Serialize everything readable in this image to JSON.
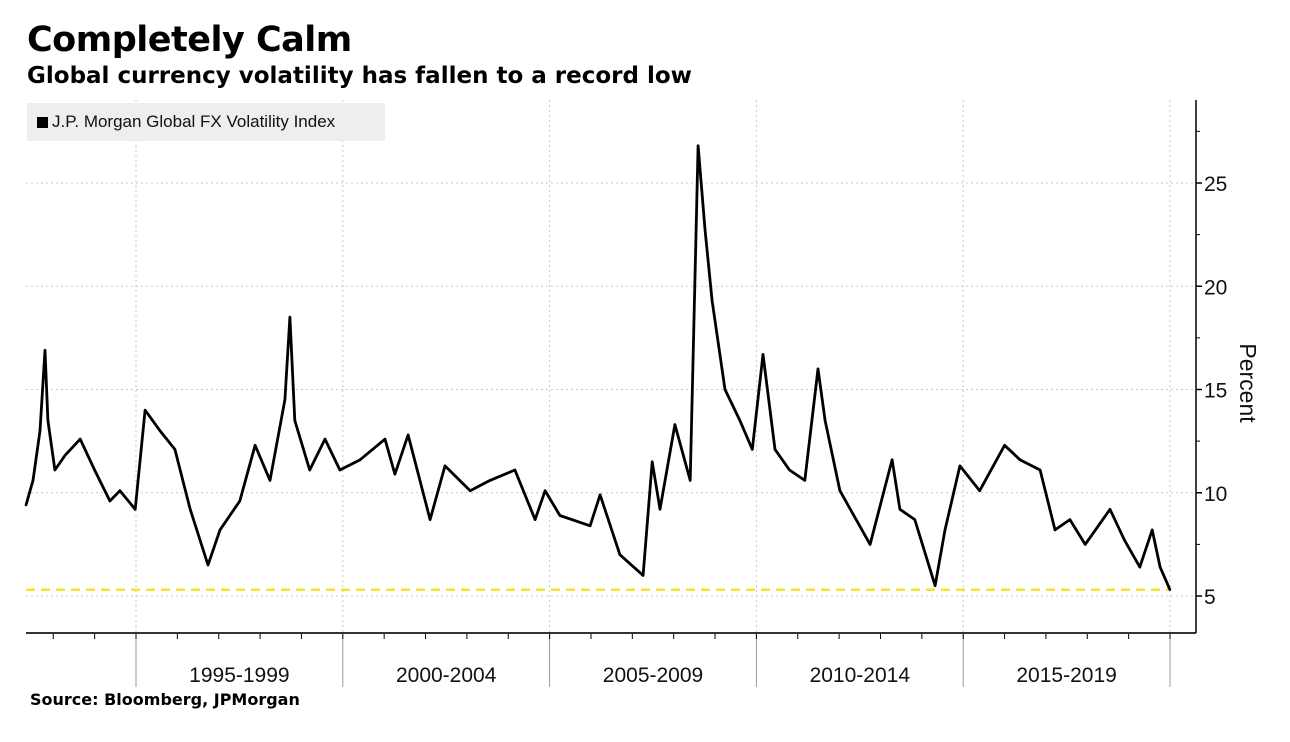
{
  "chart_data": {
    "type": "line",
    "title": "Completely Calm",
    "subtitle": "Global currency volatility has fallen to a record low",
    "source": "Source: Bloomberg, JPMorgan",
    "ylabel": "Percent",
    "xlabel": "",
    "xlim": [
      1992.34,
      2020.63
    ],
    "ylim": [
      3.2,
      29
    ],
    "y_ticks": [
      5,
      10,
      15,
      20,
      25
    ],
    "x_period_boundaries": [
      1995,
      2000,
      2005,
      2010,
      2015,
      2020
    ],
    "x_tick_labels": [
      "1995-1999",
      "2000-2004",
      "2005-2009",
      "2010-2014",
      "2015-2019"
    ],
    "grid": true,
    "legend_placement": "top-left",
    "series": [
      {
        "name": "J.P. Morgan Global FX Volatility Index",
        "color": "#000000",
        "x": [
          1992.34,
          1992.51,
          1992.68,
          1992.8,
          1992.87,
          1993.04,
          1993.28,
          1993.65,
          1994.0,
          1994.37,
          1994.61,
          1994.98,
          1995.22,
          1995.58,
          1995.94,
          1996.31,
          1996.74,
          1997.03,
          1997.51,
          1997.88,
          1998.24,
          1998.6,
          1998.72,
          1998.84,
          1999.2,
          1999.57,
          1999.93,
          2000.42,
          2001.02,
          2001.26,
          2001.58,
          2002.11,
          2002.47,
          2003.08,
          2003.56,
          2004.16,
          2004.65,
          2004.89,
          2005.25,
          2005.98,
          2006.22,
          2006.7,
          2007.26,
          2007.48,
          2007.67,
          2008.03,
          2008.4,
          2008.59,
          2008.76,
          2008.93,
          2009.24,
          2009.6,
          2009.9,
          2010.16,
          2010.45,
          2010.8,
          2011.17,
          2011.49,
          2011.66,
          2012.02,
          2012.75,
          2013.28,
          2013.47,
          2013.83,
          2014.32,
          2014.56,
          2014.92,
          2015.4,
          2016.0,
          2016.37,
          2016.86,
          2017.22,
          2017.58,
          2017.95,
          2018.55,
          2018.9,
          2019.27,
          2019.57,
          2019.76,
          2020.0
        ],
        "values": [
          9.4,
          10.6,
          13.0,
          16.9,
          13.5,
          11.1,
          11.8,
          12.6,
          11.1,
          9.6,
          10.1,
          9.2,
          14.0,
          13.0,
          12.1,
          9.2,
          6.5,
          8.2,
          9.6,
          12.3,
          10.6,
          14.5,
          18.5,
          13.5,
          11.1,
          12.6,
          11.1,
          11.6,
          12.6,
          10.9,
          12.8,
          8.7,
          11.3,
          10.1,
          10.6,
          11.1,
          8.7,
          10.1,
          8.9,
          8.4,
          9.9,
          7.0,
          6.0,
          11.5,
          9.2,
          13.3,
          10.6,
          26.8,
          22.7,
          19.3,
          15.0,
          13.5,
          12.1,
          16.7,
          12.1,
          11.1,
          10.6,
          16.0,
          13.5,
          10.1,
          7.5,
          11.6,
          9.2,
          8.7,
          5.5,
          8.2,
          11.3,
          10.1,
          12.3,
          11.6,
          11.1,
          8.2,
          8.7,
          7.5,
          9.2,
          7.7,
          6.4,
          8.2,
          6.4,
          5.3
        ]
      }
    ],
    "reference_line": {
      "value": 5.3,
      "color": "#f5e52a",
      "style": "dashed"
    }
  }
}
